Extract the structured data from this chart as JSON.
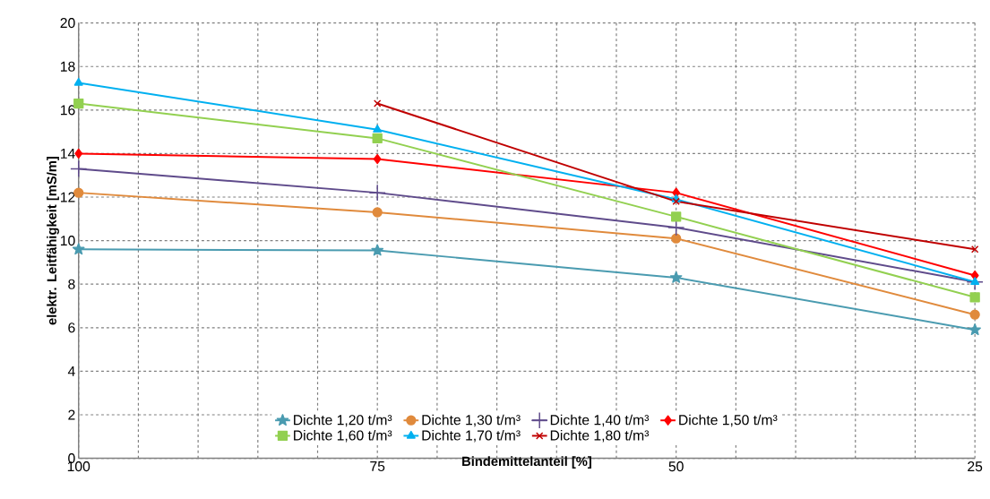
{
  "chart_data": {
    "type": "line",
    "xlabel": "Bindemittelanteil [%]",
    "ylabel": "elektr. Leitfähigkeit [mS/m]",
    "x": [
      100,
      75,
      50,
      25
    ],
    "xlim": [
      100,
      25
    ],
    "xticks": [
      100,
      {
        "value": 95,
        "label": null
      },
      {
        "value": 90,
        "label": null
      },
      {
        "value": 85,
        "label": null
      },
      {
        "value": 80,
        "label": null
      },
      75,
      {
        "value": 70,
        "label": null
      },
      {
        "value": 65,
        "label": null
      },
      {
        "value": 60,
        "label": null
      },
      {
        "value": 55,
        "label": null
      },
      50,
      {
        "value": 45,
        "label": null
      },
      {
        "value": 40,
        "label": null
      },
      {
        "value": 35,
        "label": null
      },
      {
        "value": 30,
        "label": null
      },
      25
    ],
    "ylim": [
      0,
      20
    ],
    "yticks": [
      0,
      2,
      4,
      6,
      8,
      10,
      12,
      14,
      16,
      18,
      20
    ],
    "grid": true,
    "legend": "bottom",
    "series": [
      {
        "name": "Dichte 1,20 t/m³",
        "color": "#4a9bb0",
        "marker": "star",
        "values": [
          9.6,
          9.55,
          8.3,
          5.9
        ]
      },
      {
        "name": "Dichte 1,30 t/m³",
        "color": "#e08a3c",
        "marker": "circle",
        "values": [
          12.2,
          11.3,
          10.1,
          6.6
        ]
      },
      {
        "name": "Dichte 1,40 t/m³",
        "color": "#5f4b8b",
        "marker": "plus",
        "values": [
          13.3,
          12.2,
          10.6,
          8.1
        ]
      },
      {
        "name": "Dichte 1,50 t/m³",
        "color": "#ff0000",
        "marker": "diamond",
        "values": [
          14.0,
          13.75,
          12.2,
          8.4
        ]
      },
      {
        "name": "Dichte 1,60 t/m³",
        "color": "#92d050",
        "marker": "square",
        "values": [
          16.3,
          14.7,
          11.1,
          7.4
        ]
      },
      {
        "name": "Dichte 1,70 t/m³",
        "color": "#00b0f0",
        "marker": "triangle",
        "values": [
          17.25,
          15.1,
          11.9,
          8.1
        ]
      },
      {
        "name": "Dichte 1,80 t/m³",
        "color": "#c00000",
        "marker": "cross",
        "values": [
          null,
          16.3,
          11.8,
          9.6
        ]
      }
    ]
  }
}
